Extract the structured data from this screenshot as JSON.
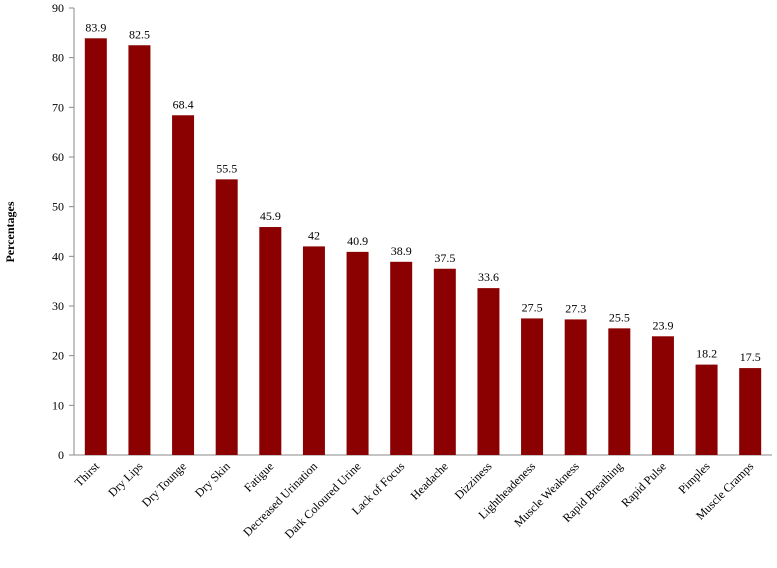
{
  "chart_data": {
    "type": "bar",
    "y_label": "Percentages",
    "categories": [
      "Thirst",
      "Dry Lips",
      "Dry Tounge",
      "Dry Skin",
      "Fatigue",
      "Decreased Urination",
      "Dark Coloured Urine",
      "Lack of Focus",
      "Headache",
      "Dizziness",
      "Lightheadeness",
      "Muscle Weakness",
      "Rapid Breathing",
      "Rapid Pulse",
      "Pimples",
      "Muscle Cramps"
    ],
    "values": [
      83.9,
      82.5,
      68.4,
      55.5,
      45.9,
      42,
      40.9,
      38.9,
      37.5,
      33.6,
      27.5,
      27.3,
      25.5,
      23.9,
      18.2,
      17.5
    ],
    "color": "#8b0000",
    "ylim": [
      0,
      90
    ],
    "yticks": [
      0,
      10,
      20,
      30,
      40,
      50,
      60,
      70,
      80,
      90
    ],
    "grid": false
  }
}
